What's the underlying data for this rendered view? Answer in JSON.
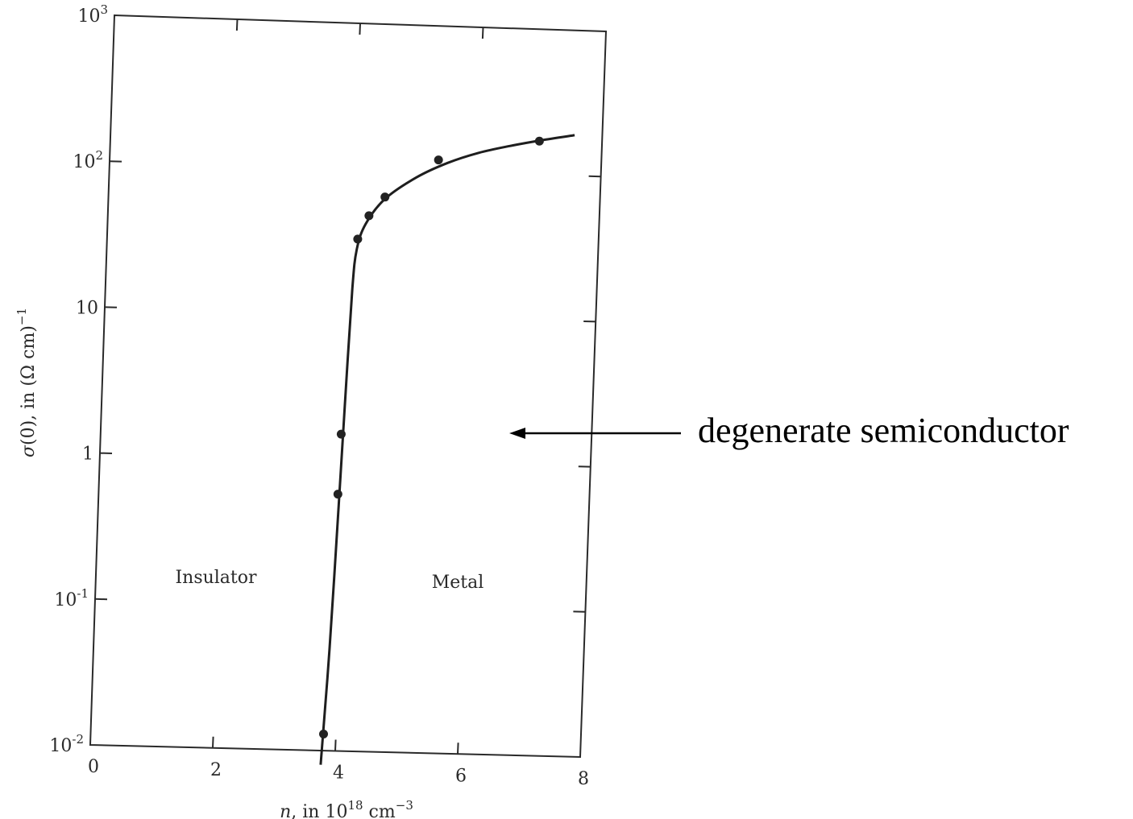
{
  "chart_data": {
    "type": "scatter",
    "xlabel": "n, in 10^18 cm^-3",
    "ylabel": "σ(0), in (Ω cm)^-1",
    "x_scale": "linear",
    "y_scale": "log",
    "xlim": [
      0,
      8
    ],
    "ylim": [
      0.01,
      1000
    ],
    "x_ticks": [
      "0",
      "2",
      "4",
      "6",
      "8"
    ],
    "y_ticks": [
      {
        "base": "10",
        "exp": "-2"
      },
      {
        "base": "10",
        "exp": "-1"
      },
      {
        "base": "1",
        "exp": ""
      },
      {
        "base": "10",
        "exp": ""
      },
      {
        "base": "10",
        "exp": "2"
      },
      {
        "base": "10",
        "exp": "3"
      }
    ],
    "grid": false,
    "points": [
      {
        "x": 3.8,
        "y": 0.013
      },
      {
        "x": 3.9,
        "y": 0.58
      },
      {
        "x": 3.92,
        "y": 1.5
      },
      {
        "x": 4.08,
        "y": 33
      },
      {
        "x": 4.25,
        "y": 48
      },
      {
        "x": 4.5,
        "y": 65
      },
      {
        "x": 5.35,
        "y": 120
      },
      {
        "x": 6.98,
        "y": 170
      }
    ],
    "curve": [
      {
        "x": 3.77,
        "y": 0.008
      },
      {
        "x": 3.85,
        "y": 0.05
      },
      {
        "x": 3.92,
        "y": 0.5
      },
      {
        "x": 3.97,
        "y": 3
      },
      {
        "x": 4.02,
        "y": 15
      },
      {
        "x": 4.07,
        "y": 28
      },
      {
        "x": 4.2,
        "y": 42
      },
      {
        "x": 4.5,
        "y": 63
      },
      {
        "x": 5.0,
        "y": 90
      },
      {
        "x": 5.5,
        "y": 115
      },
      {
        "x": 6.0,
        "y": 137
      },
      {
        "x": 6.5,
        "y": 155
      },
      {
        "x": 7.0,
        "y": 172
      },
      {
        "x": 7.55,
        "y": 190
      }
    ],
    "region_labels": {
      "left": "Insulator",
      "right": "Metal"
    },
    "annotation": "degenerate semiconductor"
  }
}
